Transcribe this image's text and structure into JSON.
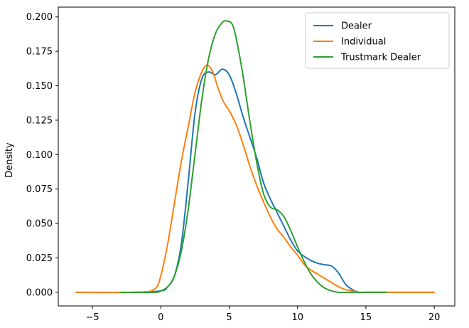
{
  "chart_data": {
    "type": "line",
    "title": "",
    "xlabel": "",
    "ylabel": "Density",
    "xlim": [
      -7.5,
      21.5
    ],
    "ylim": [
      -0.0099,
      0.2071
    ],
    "xticks": [
      -5,
      0,
      5,
      10,
      15,
      20
    ],
    "xtick_labels": [
      "−5",
      "0",
      "5",
      "10",
      "15",
      "20"
    ],
    "yticks": [
      0.0,
      0.025,
      0.05,
      0.075,
      0.1,
      0.125,
      0.15,
      0.175,
      0.2
    ],
    "ytick_labels": [
      "0.000",
      "0.025",
      "0.050",
      "0.075",
      "0.100",
      "0.125",
      "0.150",
      "0.175",
      "0.200"
    ],
    "grid": false,
    "legend_position": "top-right",
    "series": [
      {
        "name": "Dealer",
        "color": "#1f77b4",
        "x": [
          -6.2,
          -2,
          0,
          0.5,
          1,
          1.5,
          2,
          2.5,
          3,
          3.5,
          4,
          4.5,
          5,
          5.5,
          6,
          6.5,
          7,
          7.5,
          8,
          8.5,
          9,
          9.5,
          10,
          10.5,
          11,
          11.5,
          12,
          12.5,
          13,
          13.5,
          14,
          14.5,
          15,
          17,
          20
        ],
        "y": [
          0.0,
          0.0,
          0.001,
          0.004,
          0.012,
          0.035,
          0.08,
          0.13,
          0.155,
          0.16,
          0.158,
          0.162,
          0.158,
          0.145,
          0.128,
          0.113,
          0.098,
          0.08,
          0.068,
          0.058,
          0.048,
          0.038,
          0.03,
          0.026,
          0.023,
          0.021,
          0.02,
          0.019,
          0.014,
          0.006,
          0.002,
          0.0,
          0.0,
          0.0,
          0.0
        ]
      },
      {
        "name": "Individual",
        "color": "#ff7f0e",
        "x": [
          -6.2,
          -2,
          -0.5,
          0,
          0.5,
          1,
          1.5,
          2,
          2.5,
          3,
          3.4,
          3.8,
          4.2,
          4.6,
          5,
          5.5,
          6,
          6.5,
          7,
          7.5,
          8,
          8.5,
          9,
          9.5,
          10,
          10.5,
          11,
          11.5,
          12,
          12.5,
          13,
          13.5,
          14,
          14.5,
          15,
          17,
          20
        ],
        "y": [
          0.0,
          0.0,
          0.002,
          0.012,
          0.035,
          0.065,
          0.095,
          0.12,
          0.145,
          0.16,
          0.165,
          0.16,
          0.148,
          0.138,
          0.132,
          0.122,
          0.108,
          0.092,
          0.078,
          0.066,
          0.055,
          0.046,
          0.04,
          0.033,
          0.027,
          0.02,
          0.016,
          0.013,
          0.01,
          0.007,
          0.004,
          0.002,
          0.001,
          0.0,
          0.0,
          0.0,
          0.0
        ]
      },
      {
        "name": "Trustmark Dealer",
        "color": "#2ca02c",
        "x": [
          -3.0,
          -0.5,
          0,
          0.5,
          1,
          1.5,
          2,
          2.5,
          3,
          3.5,
          4,
          4.5,
          4.8,
          5.2,
          5.5,
          6,
          6.5,
          7,
          7.5,
          8,
          8.5,
          9,
          9.5,
          10,
          10.5,
          11,
          11.5,
          12,
          12.5,
          13,
          13.5,
          14,
          16.5
        ],
        "y": [
          0.0,
          0.0,
          0.001,
          0.004,
          0.012,
          0.03,
          0.06,
          0.1,
          0.14,
          0.17,
          0.188,
          0.196,
          0.197,
          0.195,
          0.185,
          0.158,
          0.125,
          0.095,
          0.072,
          0.062,
          0.06,
          0.055,
          0.045,
          0.033,
          0.022,
          0.013,
          0.007,
          0.003,
          0.001,
          0.0,
          0.0,
          0.0,
          0.0
        ]
      }
    ]
  }
}
